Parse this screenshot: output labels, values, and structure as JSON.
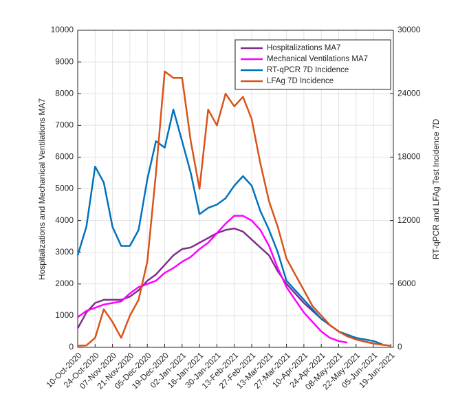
{
  "chart_data": {
    "type": "line",
    "ylabel": "Hospitalizations and Mechanical Ventilations MA7",
    "y2label": "RT-qPCR and LFAg Test Incidence 7D",
    "x": [
      "2020-10-10",
      "2020-10-17",
      "2020-10-24",
      "2020-10-31",
      "2020-11-07",
      "2020-11-14",
      "2020-11-21",
      "2020-11-28",
      "2020-12-05",
      "2020-12-12",
      "2020-12-19",
      "2020-12-26",
      "2021-01-02",
      "2021-01-09",
      "2021-01-16",
      "2021-01-23",
      "2021-01-30",
      "2021-02-06",
      "2021-02-13",
      "2021-02-20",
      "2021-02-27",
      "2021-03-06",
      "2021-03-13",
      "2021-03-20",
      "2021-03-27",
      "2021-04-03",
      "2021-04-10",
      "2021-04-17",
      "2021-04-24",
      "2021-05-01",
      "2021-05-08",
      "2021-05-15",
      "2021-05-22",
      "2021-05-29",
      "2021-06-05",
      "2021-06-12",
      "2021-06-19"
    ],
    "xlim": [
      "2020-10-10",
      "2021-06-21"
    ],
    "xticks": [
      {
        "value": "2020-10-10",
        "label": "10-Oct-2020"
      },
      {
        "value": "2020-10-24",
        "label": "24-Oct-2020"
      },
      {
        "value": "2020-11-07",
        "label": "07-Nov-2020"
      },
      {
        "value": "2020-11-21",
        "label": "21-Nov-2020"
      },
      {
        "value": "2020-12-05",
        "label": "05-Dec-2020"
      },
      {
        "value": "2020-12-19",
        "label": "19-Dec-2020"
      },
      {
        "value": "2021-01-02",
        "label": "02-Jan-2021"
      },
      {
        "value": "2021-01-16",
        "label": "16-Jan-2021"
      },
      {
        "value": "2021-01-30",
        "label": "30-Jan-2021"
      },
      {
        "value": "2021-02-13",
        "label": "13-Feb-2021"
      },
      {
        "value": "2021-02-27",
        "label": "27-Feb-2021"
      },
      {
        "value": "2021-03-13",
        "label": "13-Mar-2021"
      },
      {
        "value": "2021-03-27",
        "label": "27-Mar-2021"
      },
      {
        "value": "2021-04-10",
        "label": "10-Apr-2021"
      },
      {
        "value": "2021-04-24",
        "label": "24-Apr-2021"
      },
      {
        "value": "2021-05-08",
        "label": "08-May-2021"
      },
      {
        "value": "2021-05-22",
        "label": "22-May-2021"
      },
      {
        "value": "2021-06-05",
        "label": "05-Jun-2021"
      },
      {
        "value": "2021-06-19",
        "label": "19-Jun-2021"
      }
    ],
    "ylim": [
      0,
      10000
    ],
    "yticks": [
      0,
      1000,
      2000,
      3000,
      4000,
      5000,
      6000,
      7000,
      8000,
      9000,
      10000
    ],
    "y2lim": [
      0,
      30000
    ],
    "y2ticks": [
      0,
      6000,
      12000,
      18000,
      24000,
      30000
    ],
    "grid": true,
    "legend": "upper right",
    "series": [
      {
        "name": "Hospitalizations MA7",
        "color": "#7e2f8e",
        "values": [
          600,
          1100,
          1400,
          1500,
          1500,
          1500,
          1600,
          1800,
          2100,
          2300,
          2600,
          2900,
          3100,
          3150,
          3300,
          3450,
          3600,
          3700,
          3750,
          3650,
          3400,
          3150,
          2900,
          2400,
          2000,
          1700,
          1400,
          1150,
          900,
          700,
          500,
          350,
          250,
          180,
          130,
          null,
          null
        ]
      },
      {
        "name": "Mechanical Ventilations MA7",
        "color": "#ff00ff",
        "values": [
          950,
          1150,
          1250,
          1350,
          1400,
          1450,
          1700,
          1900,
          2000,
          2100,
          2350,
          2500,
          2700,
          2850,
          3100,
          3300,
          3600,
          3900,
          4150,
          4150,
          4000,
          3700,
          3200,
          2500,
          1900,
          1500,
          1100,
          800,
          500,
          300,
          200,
          150,
          null,
          null,
          null,
          null,
          null
        ]
      },
      {
        "name": "RT-qPCR 7D Incidence",
        "color": "#0072bd",
        "axis": "y2",
        "values": [
          8700,
          11400,
          17100,
          15600,
          11400,
          9600,
          9600,
          11100,
          15900,
          19500,
          18900,
          22500,
          19500,
          16500,
          12600,
          13200,
          13500,
          14100,
          15300,
          16200,
          15300,
          12900,
          11100,
          9000,
          6300,
          5400,
          4500,
          3600,
          2700,
          2100,
          1500,
          1200,
          900,
          750,
          600,
          300,
          null
        ]
      },
      {
        "name": "LFAg 7D Incidence",
        "color": "#d95319",
        "axis": "y2",
        "values": [
          150,
          180,
          900,
          3600,
          2400,
          900,
          3000,
          4500,
          8100,
          16500,
          26100,
          25500,
          25500,
          19500,
          15000,
          22500,
          21000,
          24000,
          22800,
          23700,
          21600,
          17400,
          13800,
          11400,
          8400,
          6900,
          5400,
          3900,
          3000,
          2100,
          1500,
          1050,
          750,
          540,
          360,
          240,
          150
        ]
      }
    ]
  }
}
